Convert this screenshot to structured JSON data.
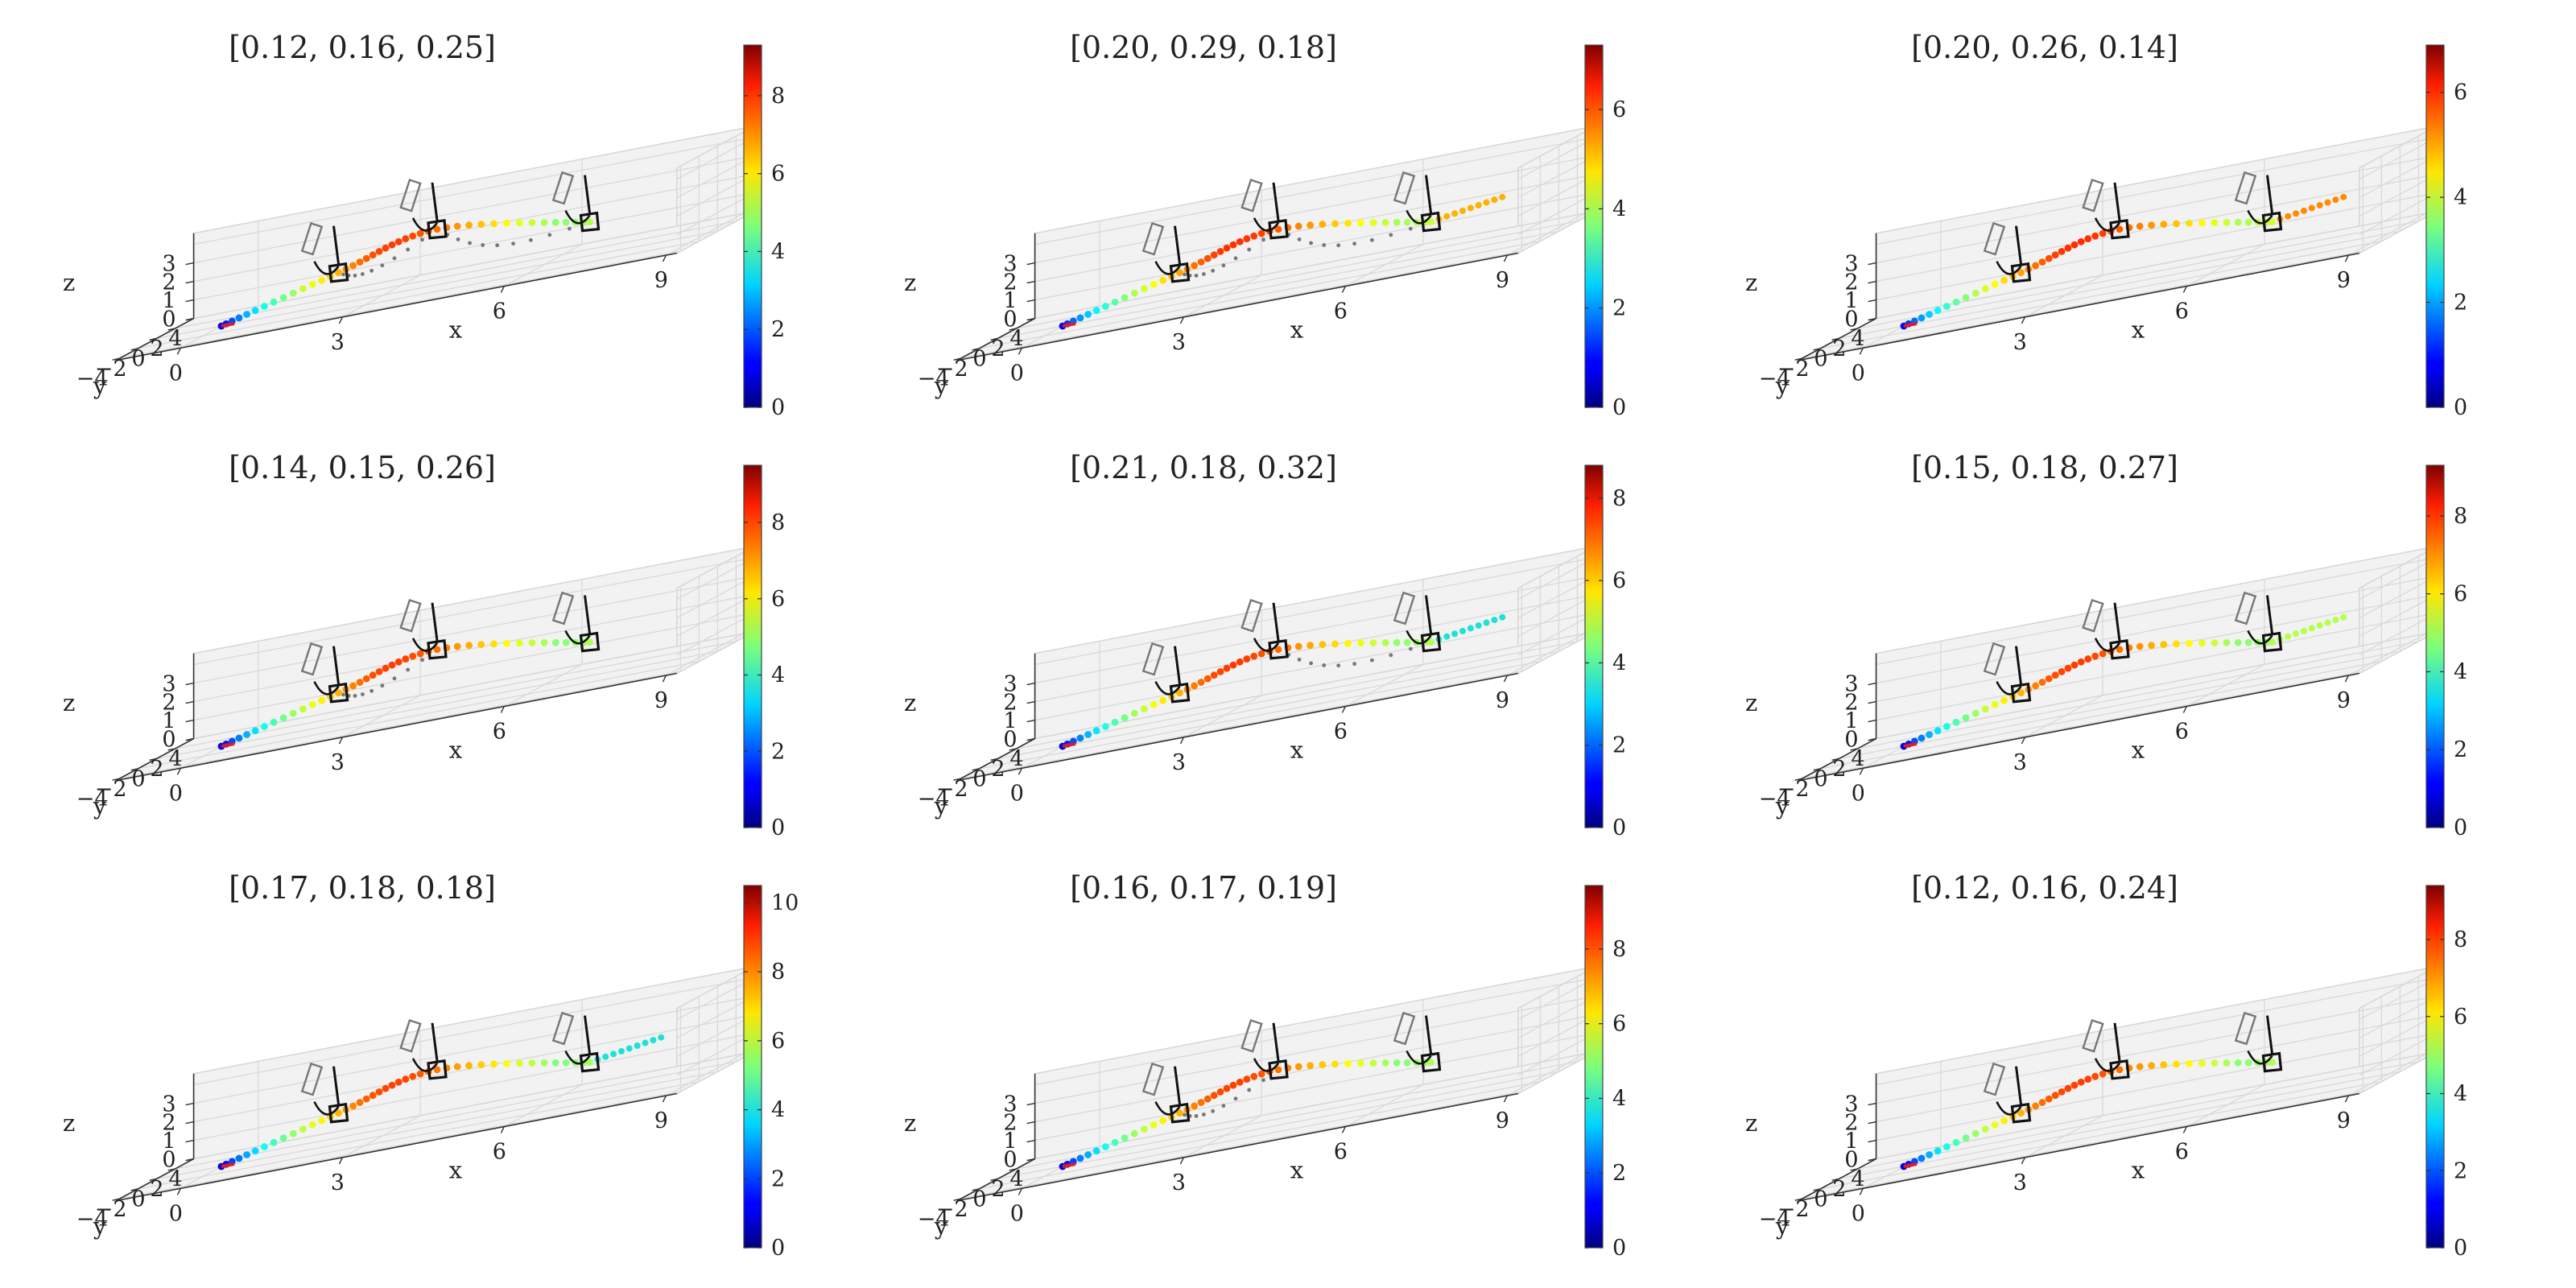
{
  "chart_data": [
    {
      "type": "scatter",
      "title": "[0.12, 0.16, 0.25]",
      "xlabel": "x",
      "ylabel": "y",
      "zlabel": "z",
      "x_ticks": [
        "0",
        "3",
        "6",
        "9"
      ],
      "y_ticks": [
        "4",
        "2",
        "0",
        "−2",
        "−4"
      ],
      "z_ticks": [
        "0",
        "1",
        "2",
        "3"
      ],
      "xlim": [
        0,
        9
      ],
      "ylim": [
        -4,
        4
      ],
      "zlim": [
        0,
        4
      ],
      "colorbar_ticks": [
        "0",
        "2",
        "4",
        "6",
        "8"
      ],
      "colorbar_max": 9.3,
      "colormap": "jet",
      "waypoints": [
        [
          0,
          0,
          0
        ],
        [
          2,
          1,
          1.5
        ],
        [
          4,
          0,
          3
        ],
        [
          7,
          -1,
          2
        ]
      ],
      "gates": [
        [
          2,
          1,
          1.5
        ],
        [
          4,
          0,
          3
        ],
        [
          7,
          -1,
          2
        ]
      ],
      "dashed_detour": [
        1,
        2
      ],
      "end_segment": "none"
    },
    {
      "type": "scatter",
      "title": "[0.20, 0.29, 0.18]",
      "xlabel": "x",
      "ylabel": "y",
      "zlabel": "z",
      "x_ticks": [
        "0",
        "3",
        "6",
        "9"
      ],
      "y_ticks": [
        "4",
        "2",
        "0",
        "−2",
        "−4"
      ],
      "z_ticks": [
        "0",
        "1",
        "2",
        "3"
      ],
      "xlim": [
        0,
        9
      ],
      "ylim": [
        -4,
        4
      ],
      "zlim": [
        0,
        4
      ],
      "colorbar_ticks": [
        "0",
        "2",
        "4",
        "6"
      ],
      "colorbar_max": 7.3,
      "colormap": "jet",
      "waypoints": [
        [
          0,
          0,
          0
        ],
        [
          2,
          1,
          1.5
        ],
        [
          4,
          0,
          3
        ],
        [
          7,
          -1,
          2
        ]
      ],
      "gates": [
        [
          2,
          1,
          1.5
        ],
        [
          4,
          0,
          3
        ],
        [
          7,
          -1,
          2
        ]
      ],
      "dashed_detour": [
        1,
        2
      ],
      "end_segment": "yellow"
    },
    {
      "type": "scatter",
      "title": "[0.20, 0.26, 0.14]",
      "xlabel": "x",
      "ylabel": "y",
      "zlabel": "z",
      "x_ticks": [
        "0",
        "3",
        "6",
        "9"
      ],
      "y_ticks": [
        "4",
        "2",
        "0",
        "−2",
        "−4"
      ],
      "z_ticks": [
        "0",
        "1",
        "2",
        "3"
      ],
      "xlim": [
        0,
        9
      ],
      "ylim": [
        -4,
        4
      ],
      "zlim": [
        0,
        4
      ],
      "colorbar_ticks": [
        "0",
        "2",
        "4",
        "6"
      ],
      "colorbar_max": 6.9,
      "colormap": "jet",
      "waypoints": [
        [
          0,
          0,
          0
        ],
        [
          2,
          1,
          1.5
        ],
        [
          4,
          0,
          3
        ],
        [
          7,
          -1,
          2
        ]
      ],
      "gates": [
        [
          2,
          1,
          1.5
        ],
        [
          4,
          0,
          3
        ],
        [
          7,
          -1,
          2
        ]
      ],
      "dashed_detour": [],
      "end_segment": "orange"
    },
    {
      "type": "scatter",
      "title": "[0.14, 0.15, 0.26]",
      "xlabel": "x",
      "ylabel": "y",
      "zlabel": "z",
      "x_ticks": [
        "0",
        "3",
        "6",
        "9"
      ],
      "y_ticks": [
        "4",
        "2",
        "0",
        "−2",
        "−4"
      ],
      "z_ticks": [
        "0",
        "1",
        "2",
        "3"
      ],
      "xlim": [
        0,
        9
      ],
      "ylim": [
        -4,
        4
      ],
      "zlim": [
        0,
        4
      ],
      "colorbar_ticks": [
        "0",
        "2",
        "4",
        "6",
        "8"
      ],
      "colorbar_max": 9.5,
      "colormap": "jet",
      "waypoints": [
        [
          0,
          0,
          0
        ],
        [
          2,
          1,
          1.5
        ],
        [
          4,
          0,
          3
        ],
        [
          7,
          -1,
          2
        ]
      ],
      "gates": [
        [
          2,
          1,
          1.5
        ],
        [
          4,
          0,
          3
        ],
        [
          7,
          -1,
          2
        ]
      ],
      "dashed_detour": [
        1
      ],
      "end_segment": "none"
    },
    {
      "type": "scatter",
      "title": "[0.21, 0.18, 0.32]",
      "xlabel": "x",
      "ylabel": "y",
      "zlabel": "z",
      "x_ticks": [
        "0",
        "3",
        "6",
        "9"
      ],
      "y_ticks": [
        "4",
        "2",
        "0",
        "−2",
        "−4"
      ],
      "z_ticks": [
        "0",
        "1",
        "2",
        "3"
      ],
      "xlim": [
        0,
        9
      ],
      "ylim": [
        -4,
        4
      ],
      "zlim": [
        0,
        4
      ],
      "colorbar_ticks": [
        "0",
        "2",
        "4",
        "6",
        "8"
      ],
      "colorbar_max": 8.8,
      "colormap": "jet",
      "waypoints": [
        [
          0,
          0,
          0
        ],
        [
          2,
          1,
          1.5
        ],
        [
          4,
          0,
          3
        ],
        [
          7,
          -1,
          2
        ]
      ],
      "gates": [
        [
          2,
          1,
          1.5
        ],
        [
          4,
          0,
          3
        ],
        [
          7,
          -1,
          2
        ]
      ],
      "dashed_detour": [
        2
      ],
      "end_segment": "cyan"
    },
    {
      "type": "scatter",
      "title": "[0.15, 0.18, 0.27]",
      "xlabel": "x",
      "ylabel": "y",
      "zlabel": "z",
      "x_ticks": [
        "0",
        "3",
        "6",
        "9"
      ],
      "y_ticks": [
        "4",
        "2",
        "0",
        "−2",
        "−4"
      ],
      "z_ticks": [
        "0",
        "1",
        "2",
        "3"
      ],
      "xlim": [
        0,
        9
      ],
      "ylim": [
        -4,
        4
      ],
      "zlim": [
        0,
        4
      ],
      "colorbar_ticks": [
        "0",
        "2",
        "4",
        "6",
        "8"
      ],
      "colorbar_max": 9.3,
      "colormap": "jet",
      "waypoints": [
        [
          0,
          0,
          0
        ],
        [
          2,
          1,
          1.5
        ],
        [
          4,
          0,
          3
        ],
        [
          7,
          -1,
          2
        ]
      ],
      "gates": [
        [
          2,
          1,
          1.5
        ],
        [
          4,
          0,
          3
        ],
        [
          7,
          -1,
          2
        ]
      ],
      "dashed_detour": [],
      "end_segment": "lime"
    },
    {
      "type": "scatter",
      "title": "[0.17, 0.18, 0.18]",
      "xlabel": "x",
      "ylabel": "y",
      "zlabel": "z",
      "x_ticks": [
        "0",
        "3",
        "6",
        "9"
      ],
      "y_ticks": [
        "4",
        "2",
        "0",
        "−2",
        "−4"
      ],
      "z_ticks": [
        "0",
        "1",
        "2",
        "3"
      ],
      "xlim": [
        0,
        9
      ],
      "ylim": [
        -4,
        4
      ],
      "zlim": [
        0,
        4
      ],
      "colorbar_ticks": [
        "0",
        "2",
        "4",
        "6",
        "8",
        "10"
      ],
      "colorbar_max": 10.5,
      "colormap": "jet",
      "waypoints": [
        [
          0,
          0,
          0
        ],
        [
          2,
          1,
          1.5
        ],
        [
          4,
          0,
          3
        ],
        [
          7,
          -1,
          2
        ]
      ],
      "gates": [
        [
          2,
          1,
          1.5
        ],
        [
          4,
          0,
          3
        ],
        [
          7,
          -1,
          2
        ]
      ],
      "dashed_detour": [],
      "end_segment": "cyan"
    },
    {
      "type": "scatter",
      "title": "[0.16, 0.17, 0.19]",
      "xlabel": "x",
      "ylabel": "y",
      "zlabel": "z",
      "x_ticks": [
        "0",
        "3",
        "6",
        "9"
      ],
      "y_ticks": [
        "4",
        "2",
        "0",
        "−2",
        "−4"
      ],
      "z_ticks": [
        "0",
        "1",
        "2",
        "3"
      ],
      "xlim": [
        0,
        9
      ],
      "ylim": [
        -4,
        4
      ],
      "zlim": [
        0,
        4
      ],
      "colorbar_ticks": [
        "0",
        "2",
        "4",
        "6",
        "8"
      ],
      "colorbar_max": 9.7,
      "colormap": "jet",
      "waypoints": [
        [
          0,
          0,
          0
        ],
        [
          2,
          1,
          1.5
        ],
        [
          4,
          0,
          3
        ],
        [
          7,
          -1,
          2
        ]
      ],
      "gates": [
        [
          2,
          1,
          1.5
        ],
        [
          4,
          0,
          3
        ],
        [
          7,
          -1,
          2
        ]
      ],
      "dashed_detour": [
        1
      ],
      "end_segment": "none"
    },
    {
      "type": "scatter",
      "title": "[0.12, 0.16, 0.24]",
      "xlabel": "x",
      "ylabel": "y",
      "zlabel": "z",
      "x_ticks": [
        "0",
        "3",
        "6",
        "9"
      ],
      "y_ticks": [
        "4",
        "2",
        "0",
        "−2",
        "−4"
      ],
      "z_ticks": [
        "0",
        "1",
        "2",
        "3"
      ],
      "xlim": [
        0,
        9
      ],
      "ylim": [
        -4,
        4
      ],
      "zlim": [
        0,
        4
      ],
      "colorbar_ticks": [
        "0",
        "2",
        "4",
        "6",
        "8"
      ],
      "colorbar_max": 9.4,
      "colormap": "jet",
      "waypoints": [
        [
          0,
          0,
          0
        ],
        [
          2,
          1,
          1.5
        ],
        [
          4,
          0,
          3
        ],
        [
          7,
          -1,
          2
        ]
      ],
      "gates": [
        [
          2,
          1,
          1.5
        ],
        [
          4,
          0,
          3
        ],
        [
          7,
          -1,
          2
        ]
      ],
      "dashed_detour": [],
      "end_segment": "none"
    }
  ]
}
